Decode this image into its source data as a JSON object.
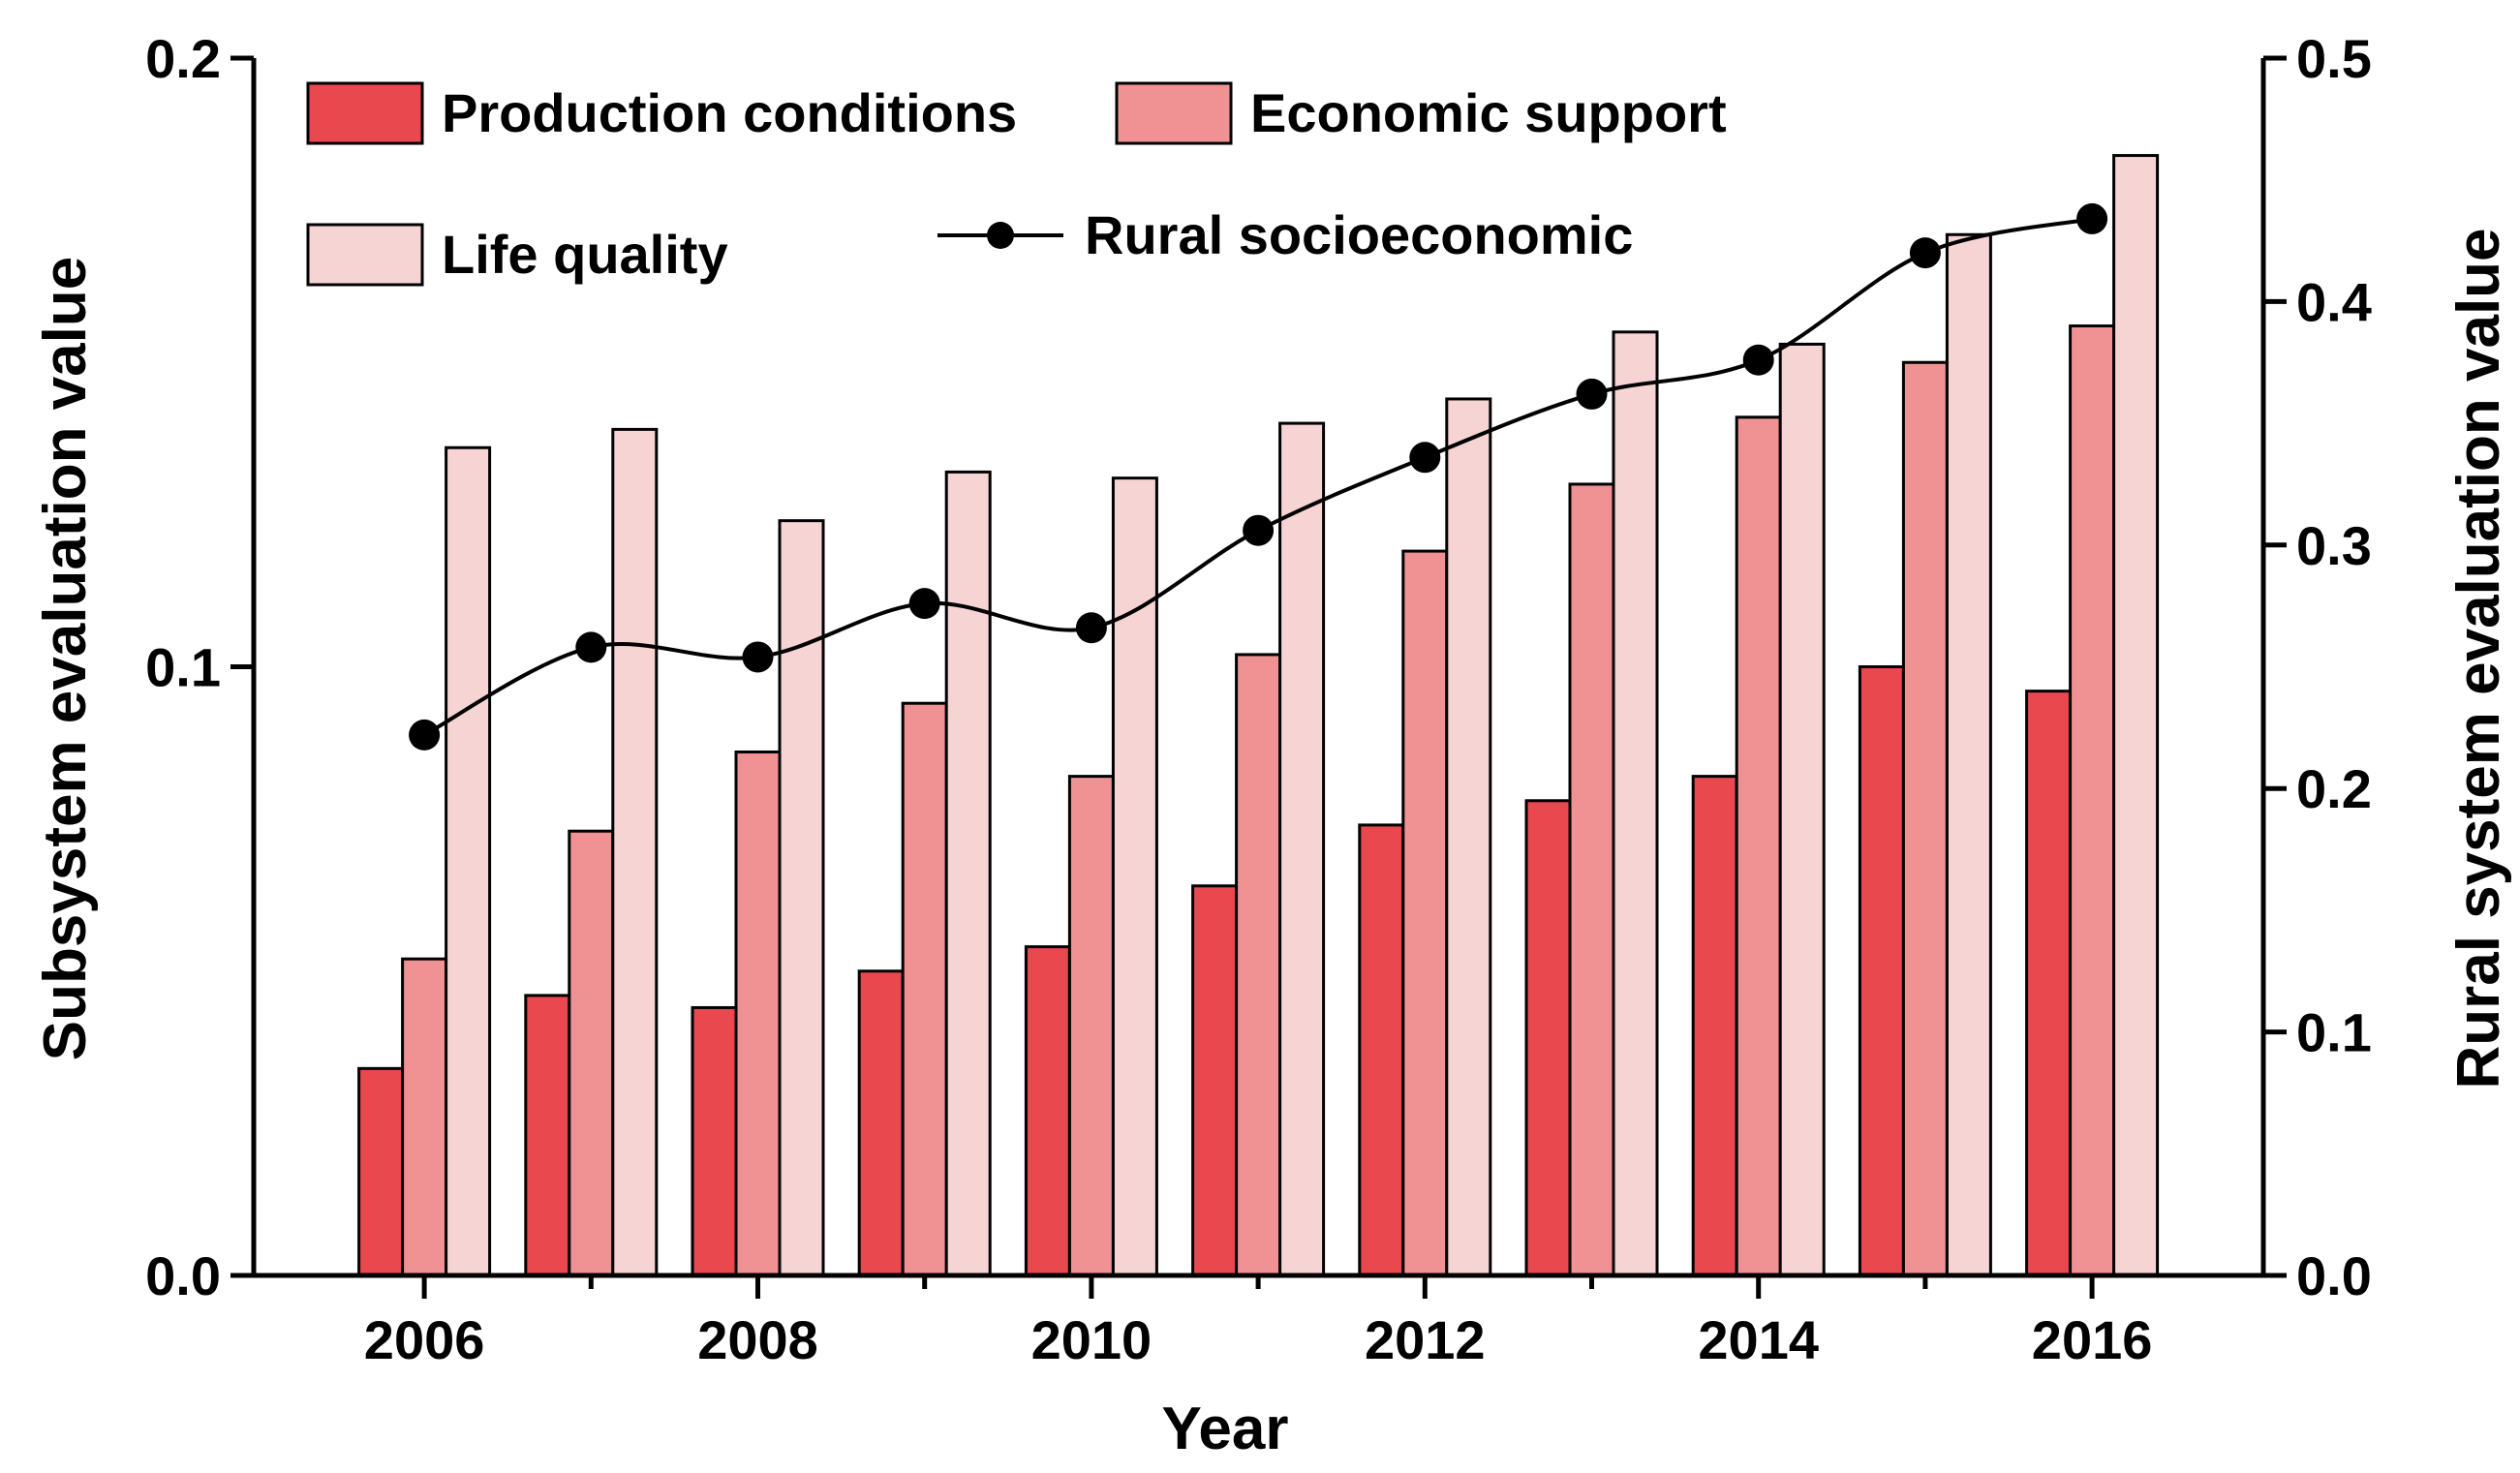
{
  "chart_data": {
    "type": "bar",
    "title": "",
    "xlabel": "Year",
    "ylabel": "Subsystem evaluation value",
    "y2label": "Rural system evaluation value",
    "categories": [
      "2006",
      "2007",
      "2008",
      "2009",
      "2010",
      "2011",
      "2012",
      "2013",
      "2014",
      "2015",
      "2016"
    ],
    "xticks": [
      "2006",
      "2008",
      "2010",
      "2012",
      "2014",
      "2016"
    ],
    "ylim": [
      0,
      0.2
    ],
    "yticks": [
      "0.0",
      "0.1",
      "0.2"
    ],
    "y2lim": [
      0,
      0.5
    ],
    "y2ticks": [
      "0.0",
      "0.1",
      "0.2",
      "0.3",
      "0.4",
      "0.5"
    ],
    "series": [
      {
        "name": "Production conditions",
        "axis": "left",
        "color": "#e8484e",
        "values": [
          0.034,
          0.046,
          0.044,
          0.05,
          0.054,
          0.064,
          0.074,
          0.078,
          0.082,
          0.1,
          0.096
        ]
      },
      {
        "name": "Economic support",
        "axis": "left",
        "color": "#f09294",
        "values": [
          0.052,
          0.073,
          0.086,
          0.094,
          0.082,
          0.102,
          0.119,
          0.13,
          0.141,
          0.15,
          0.156
        ]
      },
      {
        "name": "Life quality",
        "axis": "left",
        "color": "#f7d4d4",
        "values": [
          0.136,
          0.139,
          0.124,
          0.132,
          0.131,
          0.14,
          0.144,
          0.155,
          0.153,
          0.171,
          0.184
        ]
      },
      {
        "name": "Rural socioeconomic",
        "axis": "right",
        "type": "line",
        "color": "#000000",
        "values": [
          0.222,
          0.258,
          0.254,
          0.276,
          0.266,
          0.306,
          0.336,
          0.362,
          0.376,
          0.42,
          0.434
        ]
      }
    ],
    "legend_position": "top-left"
  }
}
